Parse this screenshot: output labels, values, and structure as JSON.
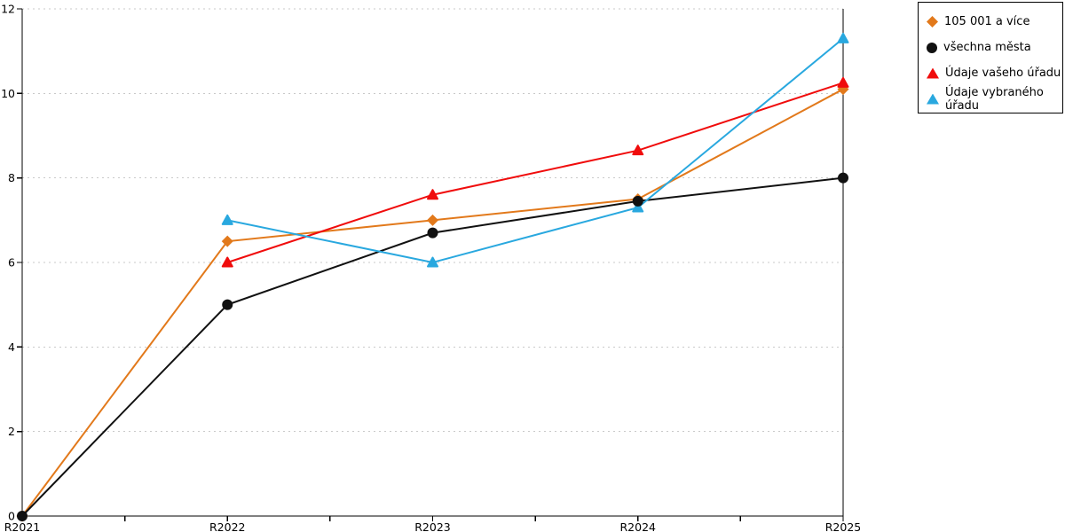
{
  "chart_data": {
    "type": "line",
    "title": "",
    "xlabel": "",
    "ylabel": "",
    "categories": [
      "R2021",
      "R2022",
      "R2023",
      "R2024",
      "R2025"
    ],
    "series": [
      {
        "name": "105 001 a více",
        "color": "#E2791B",
        "marker": "diamond",
        "values": [
          0,
          6.5,
          7.0,
          7.5,
          10.1
        ]
      },
      {
        "name": "všechna města",
        "color": "#111111",
        "marker": "circle",
        "values": [
          0,
          5.0,
          6.7,
          7.45,
          8.0
        ]
      },
      {
        "name": "Údaje vašeho úřadu",
        "color": "#F00C0C",
        "marker": "triangle",
        "values": [
          null,
          6.0,
          7.6,
          8.65,
          10.25
        ]
      },
      {
        "name": "Údaje vybraného úřadu",
        "color": "#29A8DF",
        "marker": "triangle",
        "values": [
          null,
          7.0,
          6.0,
          7.3,
          11.3
        ]
      }
    ],
    "ylim": [
      0,
      12
    ],
    "ytick_step": 2,
    "grid": "dashed-horizontal",
    "gridline_color": "#C9C9C9",
    "axis_color": "#000000",
    "legend_position": "top-right"
  }
}
